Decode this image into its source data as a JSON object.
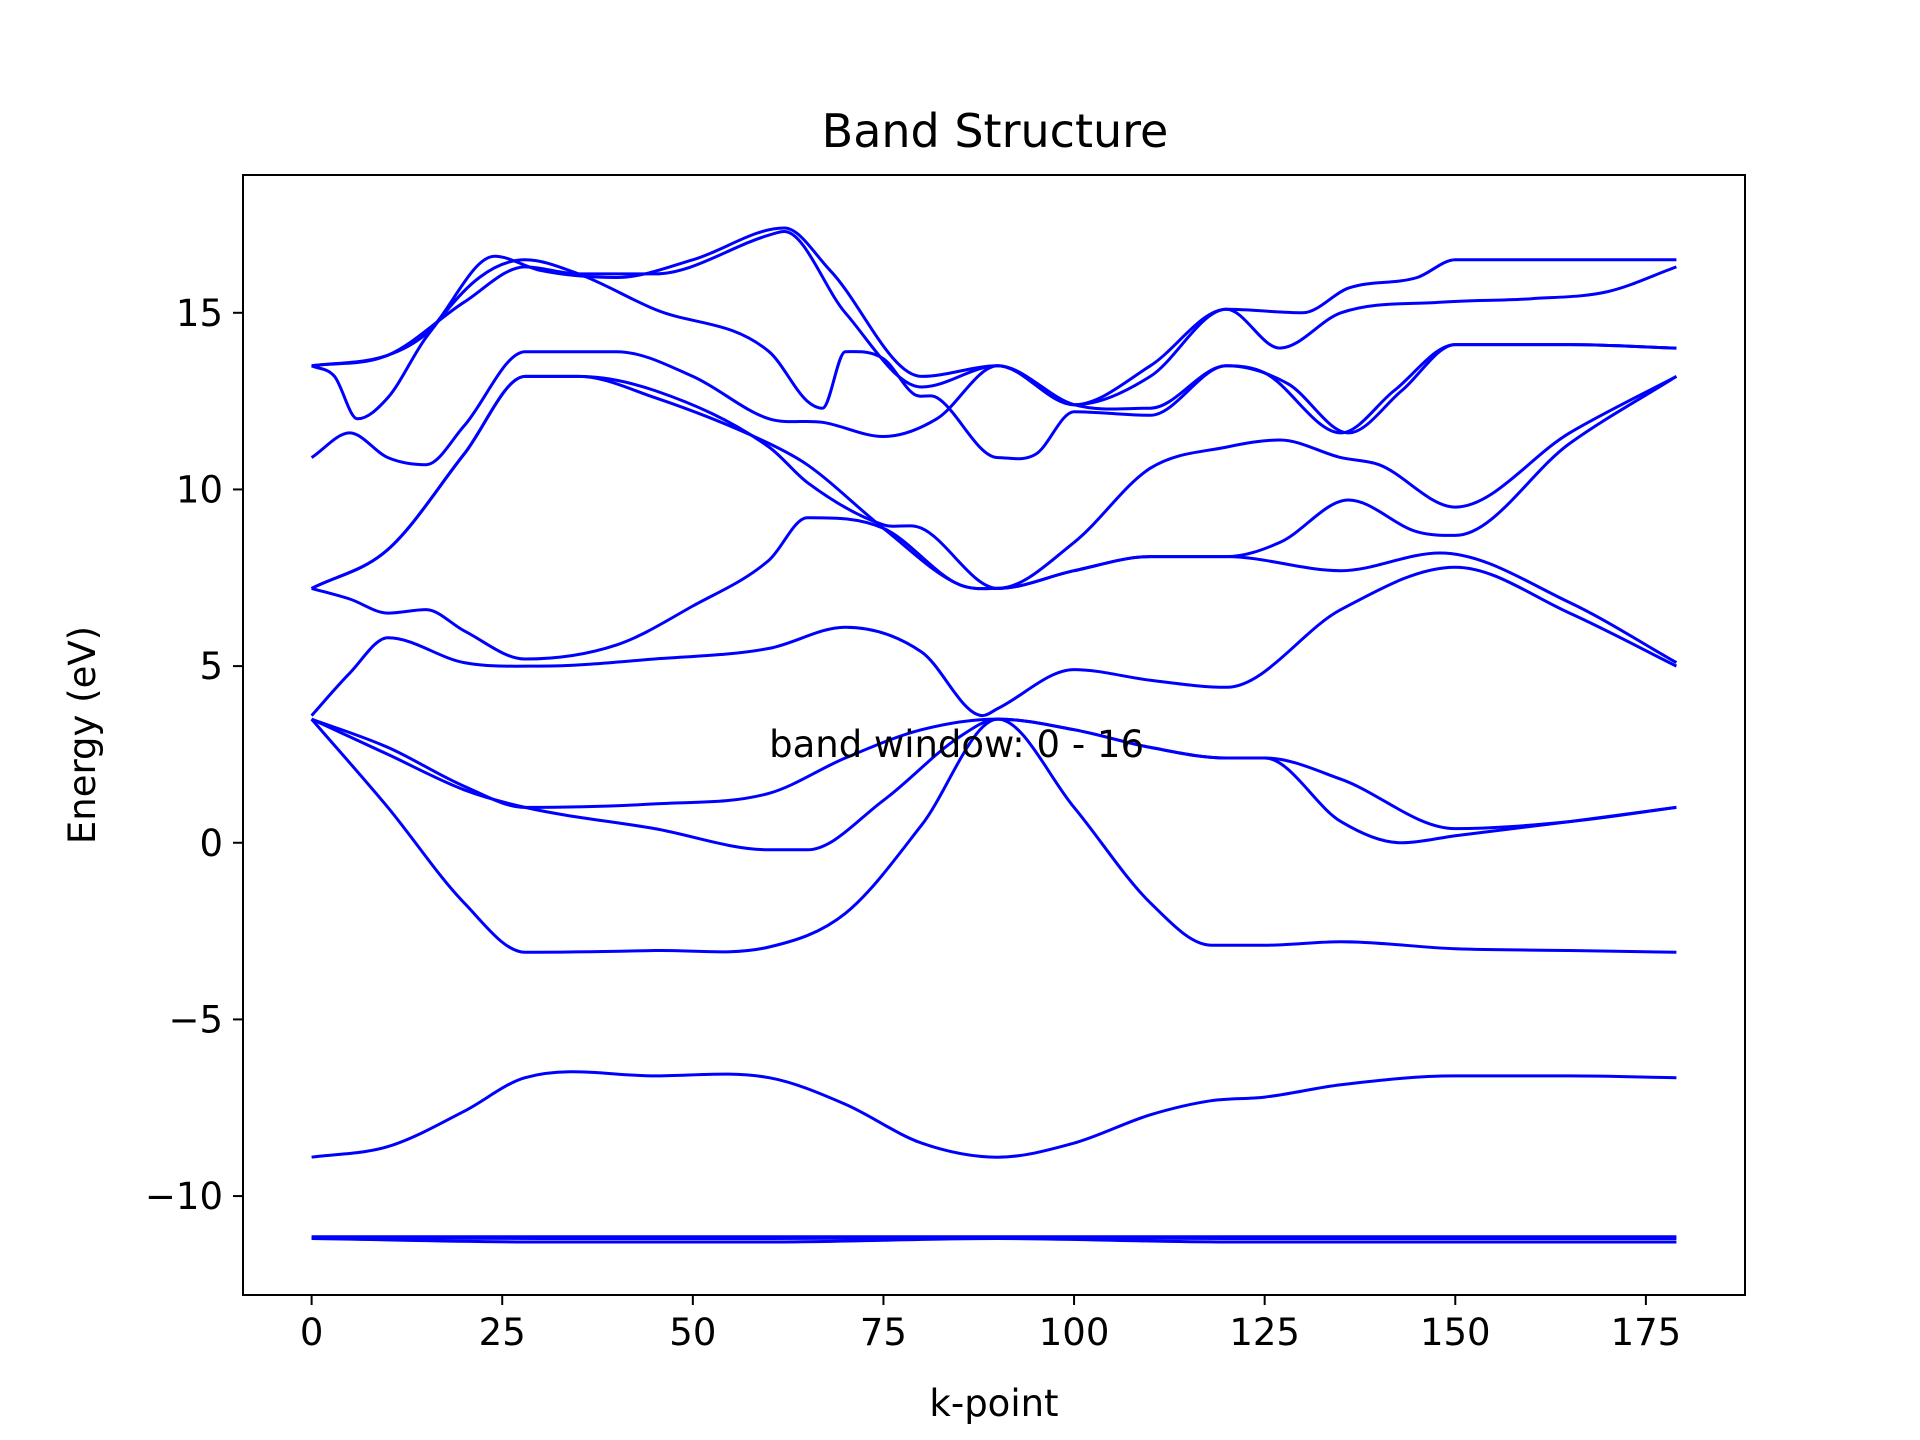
{
  "chart_data": {
    "type": "line",
    "title": "Band Structure",
    "xlabel": "k-point",
    "ylabel": "Energy (eV)",
    "xlim": [
      -9,
      188
    ],
    "ylim": [
      -12.8,
      18.9
    ],
    "x_ticks": [
      0,
      25,
      50,
      75,
      100,
      125,
      150,
      175
    ],
    "x_tick_labels": [
      "0",
      "25",
      "50",
      "75",
      "100",
      "125",
      "150",
      "175"
    ],
    "y_ticks": [
      -10,
      -5,
      0,
      5,
      10,
      15
    ],
    "y_tick_labels": [
      "−10",
      "−5",
      "0",
      "5",
      "10",
      "15"
    ],
    "grid": false,
    "legend": "none",
    "annotation": {
      "text": "band window: 0 - 16",
      "x": 60,
      "y": 2.8
    },
    "line_color": "#0000ff",
    "series": [
      {
        "points": [
          [
            0,
            -11.15
          ],
          [
            30,
            -11.15
          ],
          [
            60,
            -11.15
          ],
          [
            90,
            -11.15
          ],
          [
            120,
            -11.15
          ],
          [
            150,
            -11.15
          ],
          [
            179,
            -11.15
          ]
        ]
      },
      {
        "points": [
          [
            0,
            -11.2
          ],
          [
            30,
            -11.3
          ],
          [
            60,
            -11.3
          ],
          [
            90,
            -11.2
          ],
          [
            120,
            -11.3
          ],
          [
            150,
            -11.3
          ],
          [
            179,
            -11.3
          ]
        ]
      },
      {
        "points": [
          [
            0,
            -11.18
          ],
          [
            30,
            -11.2
          ],
          [
            60,
            -11.2
          ],
          [
            90,
            -11.18
          ],
          [
            120,
            -11.2
          ],
          [
            150,
            -11.2
          ],
          [
            179,
            -11.2
          ]
        ]
      },
      {
        "points": [
          [
            0,
            -8.9
          ],
          [
            10,
            -8.6
          ],
          [
            20,
            -7.6
          ],
          [
            28,
            -6.65
          ],
          [
            45,
            -6.6
          ],
          [
            60,
            -6.65
          ],
          [
            70,
            -7.4
          ],
          [
            80,
            -8.5
          ],
          [
            90,
            -8.9
          ],
          [
            100,
            -8.5
          ],
          [
            110,
            -7.7
          ],
          [
            118,
            -7.3
          ],
          [
            125,
            -7.2
          ],
          [
            135,
            -6.85
          ],
          [
            150,
            -6.6
          ],
          [
            165,
            -6.6
          ],
          [
            179,
            -6.65
          ]
        ]
      },
      {
        "points": [
          [
            0,
            3.5
          ],
          [
            10,
            1.0
          ],
          [
            20,
            -1.7
          ],
          [
            28,
            -3.1
          ],
          [
            45,
            -3.05
          ],
          [
            60,
            -2.95
          ],
          [
            70,
            -2.0
          ],
          [
            80,
            0.5
          ],
          [
            90,
            3.5
          ],
          [
            100,
            1.0
          ],
          [
            110,
            -1.7
          ],
          [
            118,
            -2.9
          ],
          [
            125,
            -2.9
          ],
          [
            135,
            -2.8
          ],
          [
            150,
            -3.0
          ],
          [
            165,
            -3.05
          ],
          [
            179,
            -3.1
          ]
        ]
      },
      {
        "points": [
          [
            0,
            3.5
          ],
          [
            10,
            2.5
          ],
          [
            20,
            1.5
          ],
          [
            28,
            1.0
          ],
          [
            45,
            0.4
          ],
          [
            60,
            -0.2
          ],
          [
            65,
            -0.2
          ],
          [
            75,
            1.2
          ],
          [
            85,
            3.0
          ],
          [
            90,
            3.5
          ],
          [
            100,
            3.2
          ],
          [
            110,
            2.7
          ],
          [
            120,
            2.4
          ],
          [
            125,
            2.4
          ],
          [
            135,
            0.6
          ],
          [
            143,
            0.0
          ],
          [
            150,
            0.2
          ],
          [
            165,
            0.6
          ],
          [
            179,
            1.0
          ]
        ]
      },
      {
        "points": [
          [
            0,
            3.5
          ],
          [
            10,
            2.7
          ],
          [
            20,
            1.6
          ],
          [
            28,
            1.0
          ],
          [
            45,
            1.1
          ],
          [
            60,
            1.4
          ],
          [
            70,
            2.4
          ],
          [
            80,
            3.2
          ],
          [
            90,
            3.5
          ],
          [
            100,
            3.2
          ],
          [
            110,
            2.7
          ],
          [
            120,
            2.4
          ],
          [
            125,
            2.4
          ],
          [
            135,
            1.8
          ],
          [
            150,
            0.4
          ],
          [
            165,
            0.6
          ],
          [
            179,
            1.0
          ]
        ]
      },
      {
        "points": [
          [
            0,
            3.6
          ],
          [
            5,
            4.8
          ],
          [
            10,
            5.8
          ],
          [
            20,
            5.1
          ],
          [
            30,
            5.0
          ],
          [
            45,
            5.2
          ],
          [
            60,
            5.5
          ],
          [
            70,
            6.1
          ],
          [
            80,
            5.4
          ],
          [
            88,
            3.6
          ],
          [
            90,
            3.8
          ],
          [
            100,
            4.9
          ],
          [
            110,
            4.6
          ],
          [
            120,
            4.4
          ],
          [
            135,
            6.6
          ],
          [
            150,
            7.8
          ],
          [
            165,
            6.5
          ],
          [
            179,
            5.0
          ]
        ]
      },
      {
        "points": [
          [
            0,
            7.2
          ],
          [
            5,
            6.9
          ],
          [
            10,
            6.5
          ],
          [
            15,
            6.6
          ],
          [
            20,
            6.0
          ],
          [
            28,
            5.2
          ],
          [
            40,
            5.6
          ],
          [
            50,
            6.7
          ],
          [
            60,
            8.0
          ],
          [
            65,
            9.2
          ],
          [
            75,
            8.9
          ],
          [
            85,
            7.3
          ],
          [
            90,
            7.2
          ],
          [
            100,
            7.7
          ],
          [
            110,
            8.1
          ],
          [
            120,
            8.1
          ],
          [
            135,
            7.7
          ],
          [
            148,
            8.2
          ],
          [
            165,
            6.8
          ],
          [
            179,
            5.1
          ]
        ]
      },
      {
        "points": [
          [
            0,
            7.2
          ],
          [
            10,
            8.3
          ],
          [
            20,
            11.0
          ],
          [
            28,
            13.2
          ],
          [
            35,
            13.2
          ],
          [
            45,
            12.6
          ],
          [
            60,
            11.3
          ],
          [
            65,
            10.7
          ],
          [
            75,
            8.9
          ],
          [
            85,
            7.3
          ],
          [
            90,
            7.2
          ],
          [
            100,
            7.7
          ],
          [
            110,
            8.1
          ],
          [
            120,
            8.1
          ],
          [
            127,
            8.5
          ],
          [
            136,
            9.7
          ],
          [
            145,
            8.8
          ],
          [
            150,
            8.7
          ],
          [
            165,
            11.3
          ],
          [
            179,
            13.2
          ]
        ]
      },
      {
        "points": [
          [
            0,
            7.2
          ],
          [
            10,
            8.3
          ],
          [
            20,
            11.0
          ],
          [
            28,
            13.2
          ],
          [
            35,
            13.2
          ],
          [
            45,
            12.8
          ],
          [
            60,
            11.2
          ],
          [
            65,
            10.2
          ],
          [
            75,
            9.0
          ],
          [
            80,
            8.9
          ],
          [
            90,
            7.2
          ],
          [
            100,
            8.5
          ],
          [
            110,
            10.6
          ],
          [
            120,
            11.2
          ],
          [
            127,
            11.4
          ],
          [
            135,
            10.9
          ],
          [
            140,
            10.7
          ],
          [
            150,
            9.5
          ],
          [
            165,
            11.6
          ],
          [
            179,
            13.2
          ]
        ]
      },
      {
        "points": [
          [
            0,
            10.9
          ],
          [
            5,
            11.6
          ],
          [
            10,
            10.9
          ],
          [
            15,
            10.7
          ],
          [
            20,
            11.8
          ],
          [
            28,
            13.9
          ],
          [
            40,
            13.9
          ],
          [
            50,
            13.2
          ],
          [
            60,
            12.0
          ],
          [
            67,
            11.9
          ],
          [
            75,
            11.5
          ],
          [
            82,
            12.0
          ],
          [
            90,
            13.5
          ],
          [
            100,
            12.4
          ],
          [
            110,
            12.3
          ],
          [
            120,
            13.5
          ],
          [
            128,
            13.0
          ],
          [
            136,
            11.6
          ],
          [
            143,
            12.8
          ],
          [
            150,
            14.1
          ],
          [
            165,
            14.1
          ],
          [
            179,
            14.0
          ]
        ]
      },
      {
        "points": [
          [
            0,
            13.5
          ],
          [
            3,
            13.2
          ],
          [
            6,
            12.0
          ],
          [
            10,
            12.6
          ],
          [
            15,
            14.3
          ],
          [
            22,
            16.0
          ],
          [
            28,
            16.5
          ],
          [
            35,
            16.1
          ],
          [
            45,
            15.1
          ],
          [
            60,
            13.9
          ],
          [
            65,
            12.5
          ],
          [
            67,
            12.3
          ],
          [
            70,
            13.9
          ],
          [
            75,
            13.7
          ],
          [
            79,
            12.7
          ],
          [
            82,
            12.6
          ],
          [
            90,
            10.9
          ],
          [
            95,
            11.0
          ],
          [
            100,
            12.2
          ],
          [
            110,
            12.1
          ],
          [
            120,
            13.5
          ],
          [
            125,
            13.3
          ],
          [
            135,
            11.6
          ],
          [
            142,
            12.8
          ],
          [
            150,
            14.1
          ],
          [
            165,
            14.1
          ],
          [
            179,
            14.0
          ]
        ]
      },
      {
        "points": [
          [
            0,
            13.5
          ],
          [
            10,
            13.8
          ],
          [
            20,
            15.3
          ],
          [
            28,
            16.3
          ],
          [
            35,
            16.1
          ],
          [
            45,
            16.1
          ],
          [
            60,
            17.2
          ],
          [
            62,
            17.3
          ],
          [
            70,
            15.0
          ],
          [
            80,
            12.9
          ],
          [
            90,
            13.5
          ],
          [
            100,
            12.4
          ],
          [
            110,
            13.5
          ],
          [
            120,
            15.1
          ],
          [
            127,
            14.0
          ],
          [
            135,
            15.0
          ],
          [
            148,
            15.3
          ],
          [
            160,
            15.4
          ],
          [
            170,
            15.6
          ],
          [
            179,
            16.3
          ]
        ]
      },
      {
        "points": [
          [
            0,
            13.5
          ],
          [
            10,
            13.8
          ],
          [
            15,
            14.4
          ],
          [
            24,
            16.6
          ],
          [
            30,
            16.2
          ],
          [
            40,
            16.0
          ],
          [
            50,
            16.5
          ],
          [
            62,
            17.4
          ],
          [
            68,
            16.2
          ],
          [
            80,
            13.2
          ],
          [
            90,
            13.5
          ],
          [
            100,
            12.4
          ],
          [
            110,
            13.2
          ],
          [
            120,
            15.1
          ],
          [
            130,
            15.0
          ],
          [
            136,
            15.7
          ],
          [
            145,
            16.0
          ],
          [
            150,
            16.5
          ],
          [
            165,
            16.5
          ],
          [
            179,
            16.5
          ]
        ]
      }
    ]
  }
}
